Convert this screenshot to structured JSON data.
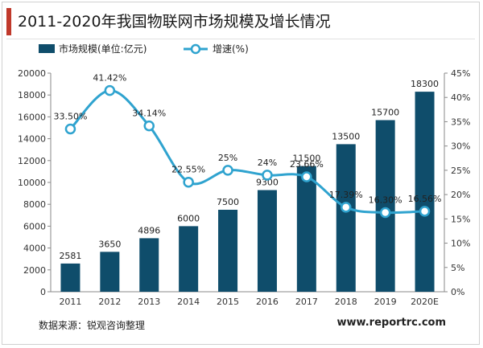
{
  "title": "2011-2020年我国物联网市场规模及增长情况",
  "source": "数据来源：锐观咨询整理",
  "website": "www.reportrc.com",
  "colors": {
    "bar": "#0f4d6b",
    "line": "#2fa3cf",
    "title_accent": "#c0392b"
  },
  "chart_data": {
    "type": "bar",
    "categories": [
      "2011",
      "2012",
      "2013",
      "2014",
      "2015",
      "2016",
      "2017",
      "2018",
      "2019",
      "2020E"
    ],
    "series": [
      {
        "name": "市场规模(单位:亿元)",
        "type": "bar",
        "axis": "left",
        "values": [
          2581,
          3650,
          4896,
          6000,
          7500,
          9300,
          11500,
          13500,
          15700,
          18300
        ],
        "labels": [
          "2581",
          "3650",
          "4896",
          "6000",
          "7500",
          "9300",
          "11500",
          "13500",
          "15700",
          "18300"
        ]
      },
      {
        "name": "增速(%)",
        "type": "line",
        "axis": "right",
        "values": [
          33.5,
          41.42,
          34.14,
          22.55,
          25,
          24,
          23.66,
          17.39,
          16.3,
          16.56
        ],
        "labels": [
          "33.50%",
          "41.42%",
          "34.14%",
          "22.55%",
          "25%",
          "24%",
          "23.66%",
          "17.39%",
          "16.30%",
          "16.56%"
        ]
      }
    ],
    "y_left": {
      "min": 0,
      "max": 20000,
      "ticks": [
        "0",
        "2000",
        "4000",
        "6000",
        "8000",
        "10000",
        "12000",
        "14000",
        "16000",
        "18000",
        "20000"
      ]
    },
    "y_right": {
      "min": 0,
      "max": 45,
      "ticks": [
        "0%",
        "5%",
        "10%",
        "15%",
        "20%",
        "25%",
        "30%",
        "35%",
        "40%",
        "45%"
      ]
    },
    "grid": false,
    "legend": "top-left"
  }
}
